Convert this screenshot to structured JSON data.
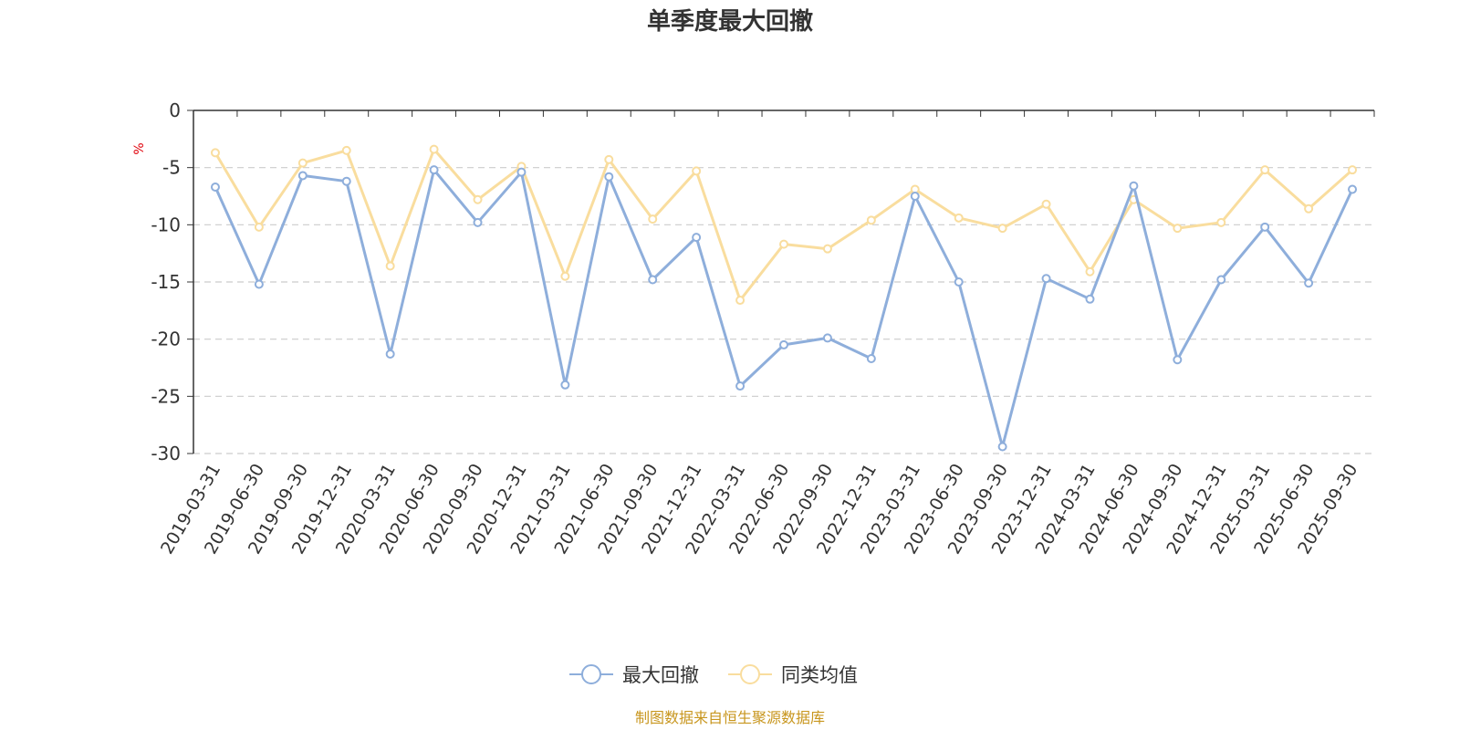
{
  "chart_data": {
    "type": "line",
    "title": "单季度最大回撤",
    "ylabel": "%",
    "ylim": [
      -30,
      0
    ],
    "yticks": [
      0,
      -5,
      -10,
      -15,
      -20,
      -25,
      -30
    ],
    "grid": true,
    "legend_position": "bottom-center",
    "categories": [
      "2019-03-31",
      "2019-06-30",
      "2019-09-30",
      "2019-12-31",
      "2020-03-31",
      "2020-06-30",
      "2020-09-30",
      "2020-12-31",
      "2021-03-31",
      "2021-06-30",
      "2021-09-30",
      "2021-12-31",
      "2022-03-31",
      "2022-06-30",
      "2022-09-30",
      "2022-12-31",
      "2023-03-31",
      "2023-06-30",
      "2023-09-30",
      "2023-12-31",
      "2024-03-31",
      "2024-06-30",
      "2024-09-30",
      "2024-12-31",
      "2025-03-31",
      "2025-06-30",
      "2025-09-30"
    ],
    "series": [
      {
        "name": "最大回撤",
        "color": "#8eaedb",
        "values": [
          -6.7,
          -15.2,
          -5.7,
          -6.2,
          -21.3,
          -5.2,
          -9.8,
          -5.4,
          -24.0,
          -5.8,
          -14.8,
          -11.1,
          -24.1,
          -20.5,
          -19.9,
          -21.7,
          -7.5,
          -15.0,
          -29.4,
          -14.7,
          -16.5,
          -6.6,
          -21.8,
          -14.8,
          -10.2,
          -15.1,
          -6.9
        ]
      },
      {
        "name": "同类均值",
        "color": "#f9dd9e",
        "values": [
          -3.7,
          -10.2,
          -4.6,
          -3.5,
          -13.6,
          -3.4,
          -7.8,
          -4.9,
          -14.5,
          -4.3,
          -9.5,
          -5.3,
          -16.6,
          -11.7,
          -12.1,
          -9.6,
          -6.9,
          -9.4,
          -10.3,
          -8.2,
          -14.1,
          -7.8,
          -10.3,
          -9.8,
          -5.2,
          -8.6,
          -5.2
        ]
      }
    ]
  },
  "source_note": "制图数据来自恒生聚源数据库"
}
